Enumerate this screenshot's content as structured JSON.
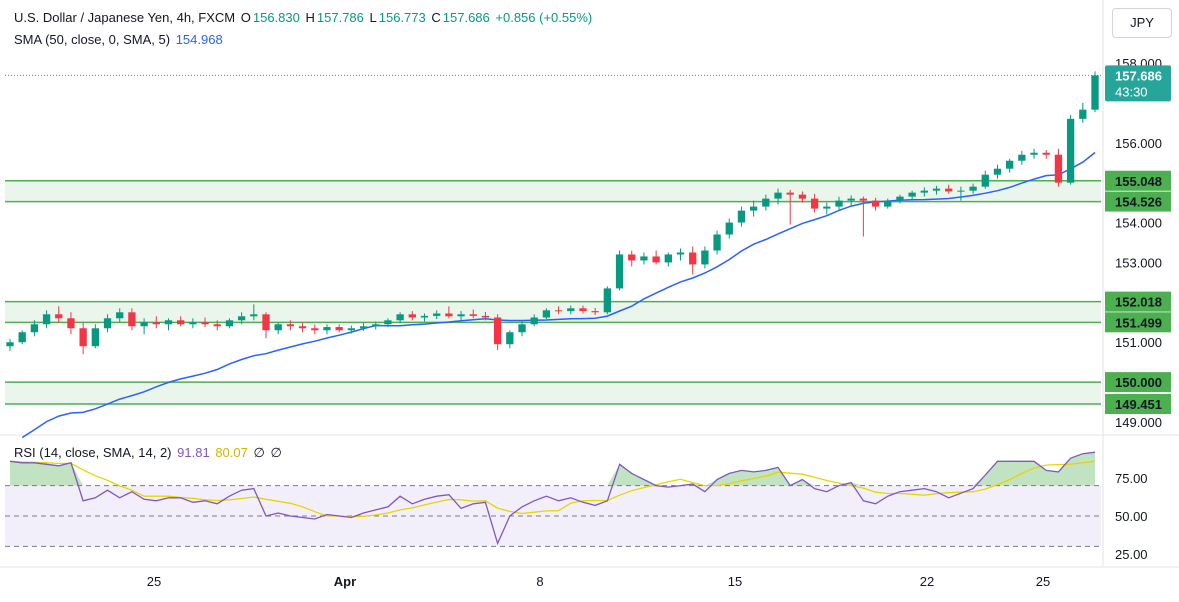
{
  "legend": {
    "symbol": "U.S. Dollar / Japanese Yen, 4h, FXCM",
    "o_label": "O",
    "o_value": "156.830",
    "h_label": "H",
    "h_value": "157.786",
    "l_label": "L",
    "l_value": "156.773",
    "c_label": "C",
    "c_value": "157.686",
    "change": "+0.856 (+0.55%)",
    "sma_label": "SMA (50, close, 0, SMA, 5)",
    "sma_value": "154.968",
    "rsi_label": "RSI (14, close, SMA, 14, 2)",
    "rsi_value": "91.81",
    "rsi_sma_value": "80.07",
    "rsi_extra1": "∅",
    "rsi_extra2": "∅"
  },
  "currency_button": "JPY",
  "colors": {
    "up": "#089981",
    "down": "#f23645",
    "sma": "#2962ff",
    "zone_fill": "#e8f5e9",
    "zone_line": "#4caf50",
    "rsi_line": "#7e57c2",
    "rsi_ma": "#e6d600",
    "rsi_band": "#f3effa",
    "price_tag": "#26a69a"
  },
  "chart_data": [
    {
      "type": "candlestick",
      "title": "U.S. Dollar / Japanese Yen, 4h, FXCM",
      "y_ticks": [
        "158.000",
        "156.000",
        "154.000",
        "153.000",
        "151.000",
        "149.000"
      ],
      "ylim": [
        148.8,
        158.3
      ],
      "x_ticks": [
        "25",
        "Apr",
        "8",
        "15",
        "22",
        "25"
      ],
      "last_price": "157.686",
      "countdown": "43:30",
      "zones": [
        {
          "top": 155.048,
          "bottom": 154.526,
          "top_label": "155.048",
          "bottom_label": "154.526"
        },
        {
          "top": 152.018,
          "bottom": 151.499,
          "top_label": "152.018",
          "bottom_label": "151.499"
        },
        {
          "top": 150.0,
          "bottom": 149.451,
          "top_label": "150.000",
          "bottom_label": "149.451"
        }
      ],
      "ohlc": [
        [
          150.9,
          151.08,
          150.78,
          151.0
        ],
        [
          151.0,
          151.3,
          150.95,
          151.25
        ],
        [
          151.25,
          151.55,
          151.15,
          151.45
        ],
        [
          151.45,
          151.8,
          151.35,
          151.7
        ],
        [
          151.7,
          151.9,
          151.5,
          151.6
        ],
        [
          151.6,
          151.75,
          151.2,
          151.35
        ],
        [
          151.35,
          151.5,
          150.7,
          150.9
        ],
        [
          150.9,
          151.45,
          150.85,
          151.35
        ],
        [
          151.35,
          151.7,
          151.25,
          151.6
        ],
        [
          151.6,
          151.85,
          151.5,
          151.75
        ],
        [
          151.75,
          151.85,
          151.3,
          151.4
        ],
        [
          151.4,
          151.6,
          151.2,
          151.5
        ],
        [
          151.5,
          151.65,
          151.35,
          151.45
        ],
        [
          151.45,
          151.6,
          151.3,
          151.55
        ],
        [
          151.55,
          151.65,
          151.4,
          151.45
        ],
        [
          151.45,
          151.6,
          151.35,
          151.5
        ],
        [
          151.5,
          151.62,
          151.38,
          151.45
        ],
        [
          151.45,
          151.55,
          151.3,
          151.4
        ],
        [
          151.4,
          151.6,
          151.35,
          151.55
        ],
        [
          151.55,
          151.75,
          151.45,
          151.65
        ],
        [
          151.65,
          151.95,
          151.55,
          151.7
        ],
        [
          151.7,
          151.75,
          151.1,
          151.3
        ],
        [
          151.3,
          151.5,
          151.2,
          151.45
        ],
        [
          151.45,
          151.55,
          151.3,
          151.4
        ],
        [
          151.4,
          151.5,
          151.25,
          151.35
        ],
        [
          151.35,
          151.45,
          151.2,
          151.3
        ],
        [
          151.3,
          151.45,
          151.2,
          151.38
        ],
        [
          151.38,
          151.45,
          151.25,
          151.3
        ],
        [
          151.3,
          151.42,
          151.22,
          151.35
        ],
        [
          151.35,
          151.48,
          151.28,
          151.4
        ],
        [
          151.4,
          151.52,
          151.32,
          151.45
        ],
        [
          151.45,
          151.6,
          151.38,
          151.55
        ],
        [
          151.55,
          151.75,
          151.48,
          151.7
        ],
        [
          151.7,
          151.78,
          151.55,
          151.62
        ],
        [
          151.62,
          151.72,
          151.52,
          151.66
        ],
        [
          151.66,
          151.8,
          151.58,
          151.72
        ],
        [
          151.72,
          151.9,
          151.6,
          151.65
        ],
        [
          151.65,
          151.78,
          151.55,
          151.7
        ],
        [
          151.7,
          151.82,
          151.6,
          151.66
        ],
        [
          151.66,
          151.76,
          151.55,
          151.62
        ],
        [
          151.62,
          151.7,
          150.8,
          150.95
        ],
        [
          150.95,
          151.3,
          150.85,
          151.25
        ],
        [
          151.25,
          151.55,
          151.15,
          151.45
        ],
        [
          151.45,
          151.7,
          151.4,
          151.62
        ],
        [
          151.62,
          151.85,
          151.58,
          151.8
        ],
        [
          151.8,
          151.9,
          151.7,
          151.78
        ],
        [
          151.78,
          151.92,
          151.7,
          151.85
        ],
        [
          151.85,
          151.92,
          151.72,
          151.78
        ],
        [
          151.78,
          151.86,
          151.68,
          151.75
        ],
        [
          151.75,
          152.4,
          151.7,
          152.35
        ],
        [
          152.35,
          153.3,
          152.3,
          153.2
        ],
        [
          153.2,
          153.3,
          152.9,
          153.05
        ],
        [
          153.05,
          153.25,
          152.95,
          153.15
        ],
        [
          153.15,
          153.3,
          152.95,
          153.0
        ],
        [
          153.0,
          153.25,
          152.9,
          153.2
        ],
        [
          153.2,
          153.35,
          153.05,
          153.25
        ],
        [
          153.25,
          153.4,
          152.7,
          152.95
        ],
        [
          152.95,
          153.4,
          152.85,
          153.3
        ],
        [
          153.3,
          153.8,
          153.2,
          153.7
        ],
        [
          153.7,
          154.1,
          153.6,
          154.0
        ],
        [
          154.0,
          154.4,
          153.9,
          154.3
        ],
        [
          154.3,
          154.55,
          154.15,
          154.4
        ],
        [
          154.4,
          154.7,
          154.3,
          154.6
        ],
        [
          154.6,
          154.85,
          154.45,
          154.75
        ],
        [
          154.75,
          154.82,
          153.95,
          154.7
        ],
        [
          154.7,
          154.78,
          154.5,
          154.6
        ],
        [
          154.6,
          154.72,
          154.25,
          154.35
        ],
        [
          154.35,
          154.5,
          154.2,
          154.4
        ],
        [
          154.4,
          154.65,
          154.3,
          154.55
        ],
        [
          154.55,
          154.68,
          154.4,
          154.6
        ],
        [
          154.6,
          154.65,
          153.65,
          154.55
        ],
        [
          154.55,
          154.62,
          154.3,
          154.4
        ],
        [
          154.4,
          154.6,
          154.35,
          154.55
        ],
        [
          154.55,
          154.7,
          154.48,
          154.65
        ],
        [
          154.65,
          154.8,
          154.58,
          154.75
        ],
        [
          154.75,
          154.88,
          154.65,
          154.8
        ],
        [
          154.8,
          154.92,
          154.7,
          154.85
        ],
        [
          154.85,
          154.95,
          154.72,
          154.78
        ],
        [
          154.78,
          154.9,
          154.55,
          154.8
        ],
        [
          154.8,
          154.98,
          154.72,
          154.9
        ],
        [
          154.9,
          155.3,
          154.85,
          155.2
        ],
        [
          155.2,
          155.45,
          155.1,
          155.35
        ],
        [
          155.35,
          155.6,
          155.25,
          155.55
        ],
        [
          155.55,
          155.8,
          155.45,
          155.7
        ],
        [
          155.7,
          155.85,
          155.6,
          155.75
        ],
        [
          155.75,
          155.82,
          155.6,
          155.7
        ],
        [
          155.7,
          155.85,
          154.9,
          155.0
        ],
        [
          155.0,
          156.7,
          154.95,
          156.6
        ],
        [
          156.6,
          157.0,
          156.5,
          156.83
        ],
        [
          156.83,
          157.79,
          156.77,
          157.69
        ]
      ]
    },
    {
      "type": "line",
      "title": "RSI (14, close, SMA, 14, 2)",
      "y_ticks": [
        "75.00",
        "50.00",
        "25.00"
      ],
      "ylim": [
        22,
        100
      ],
      "levels": [
        70,
        50,
        30
      ],
      "series": [
        {
          "name": "RSI",
          "values": [
            86,
            85,
            85,
            84,
            83,
            85,
            60,
            62,
            67,
            62,
            66,
            61,
            60,
            62,
            62,
            59,
            60,
            58,
            63,
            67,
            68,
            50,
            52,
            50,
            49,
            48,
            51,
            50,
            49,
            52,
            54,
            56,
            63,
            58,
            61,
            63,
            64,
            55,
            58,
            59,
            32,
            50,
            56,
            60,
            63,
            60,
            62,
            59,
            57,
            60,
            84,
            78,
            74,
            70,
            69,
            70,
            71,
            66,
            74,
            78,
            80,
            79,
            80,
            82,
            70,
            74,
            68,
            66,
            70,
            72,
            60,
            58,
            63,
            66,
            67,
            68,
            66,
            62,
            65,
            68,
            77,
            86,
            86,
            86,
            86,
            80,
            79,
            88,
            91,
            92
          ]
        }
      ]
    }
  ]
}
